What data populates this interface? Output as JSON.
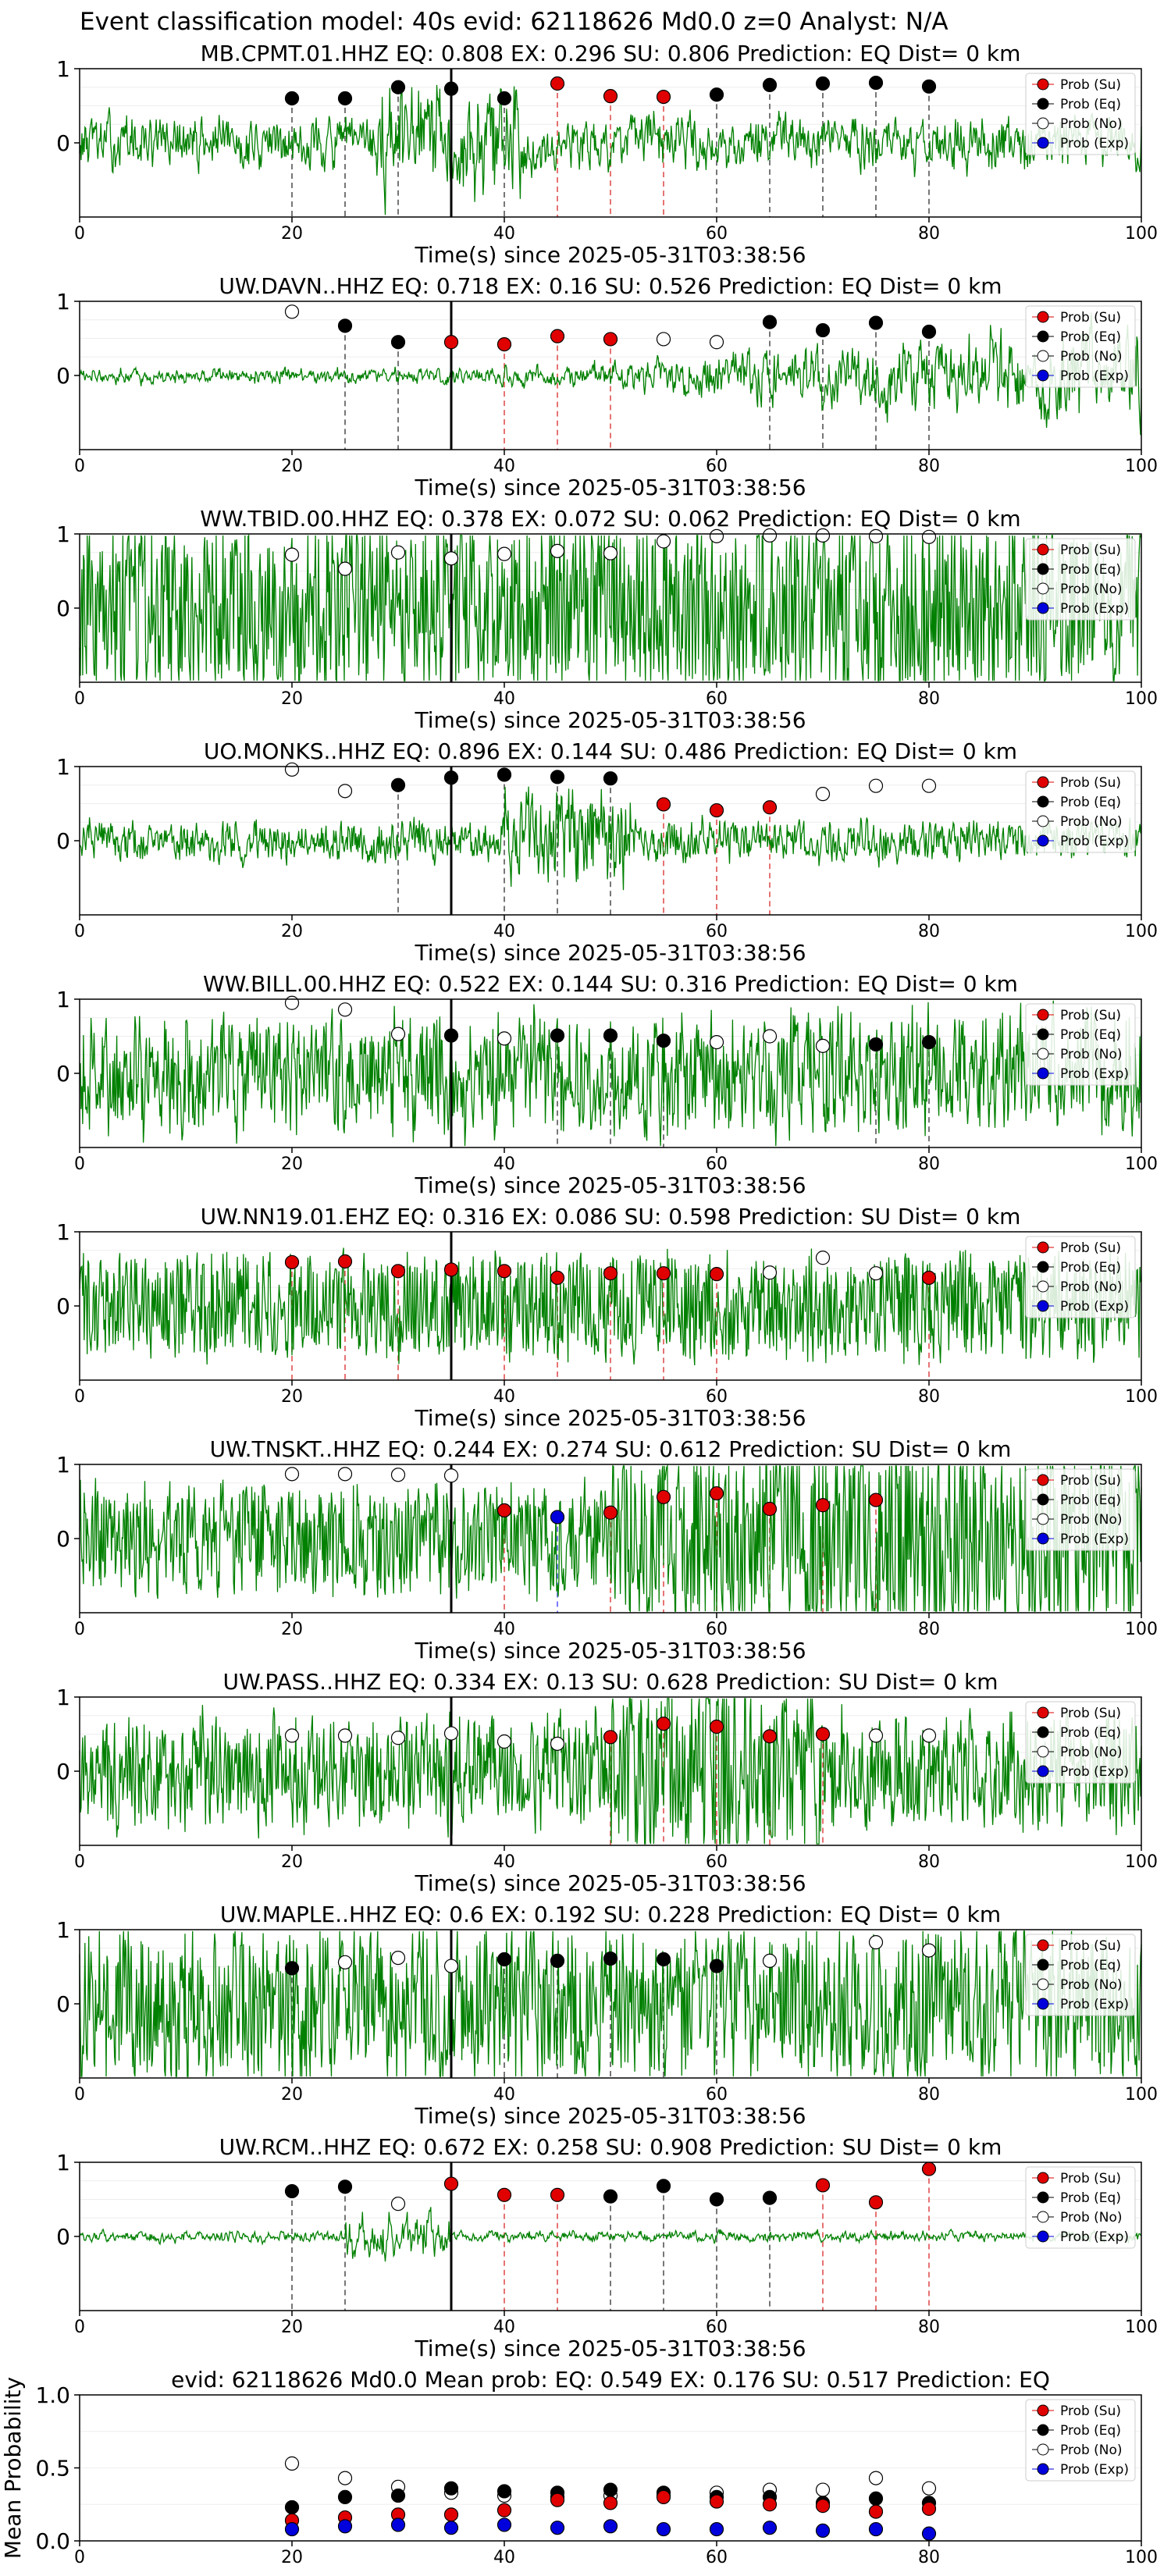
{
  "figure": {
    "suptitle": "Event classification model: 40s evid: 62118626 Md0.0 z=0 Analyst: N/A",
    "legend_labels": [
      "Prob (Su)",
      "Prob (Eq)",
      "Prob (No)",
      "Prob (Exp)"
    ],
    "colors": {
      "su": "#e00000",
      "eq": "#000000",
      "no": "#ffffff",
      "exp": "#0000dd",
      "trace": "#008000"
    }
  },
  "chart_data": [
    {
      "type": "line",
      "title": "MB.CPMT.01.HHZ   EQ: 0.808  EX: 0.296  SU: 0.806   Prediction: EQ    Dist= 0 km",
      "xlabel": "Time(s) since 2025-05-31T03:38:56",
      "xlim": [
        0,
        100
      ],
      "ylim": [
        -1,
        1
      ],
      "xticks": [
        "0",
        "20",
        "40",
        "60",
        "80",
        "100"
      ],
      "yticks": [
        "1",
        "0"
      ],
      "pick_x": 35,
      "points": [
        {
          "x": 20,
          "y": 0.6,
          "cls": "eq"
        },
        {
          "x": 25,
          "y": 0.6,
          "cls": "eq"
        },
        {
          "x": 30,
          "y": 0.75,
          "cls": "eq"
        },
        {
          "x": 35,
          "y": 0.73,
          "cls": "eq"
        },
        {
          "x": 40,
          "y": 0.6,
          "cls": "eq"
        },
        {
          "x": 45,
          "y": 0.8,
          "cls": "su"
        },
        {
          "x": 50,
          "y": 0.63,
          "cls": "su"
        },
        {
          "x": 55,
          "y": 0.62,
          "cls": "su"
        },
        {
          "x": 60,
          "y": 0.65,
          "cls": "eq"
        },
        {
          "x": 65,
          "y": 0.78,
          "cls": "eq"
        },
        {
          "x": 70,
          "y": 0.8,
          "cls": "eq"
        },
        {
          "x": 75,
          "y": 0.81,
          "cls": "eq"
        },
        {
          "x": 80,
          "y": 0.76,
          "cls": "eq"
        }
      ]
    },
    {
      "type": "line",
      "title": "UW.DAVN..HHZ   EQ: 0.718  EX: 0.16  SU: 0.526   Prediction: EQ    Dist= 0 km",
      "xlabel": "Time(s) since 2025-05-31T03:38:56",
      "xlim": [
        0,
        100
      ],
      "ylim": [
        -1,
        1
      ],
      "xticks": [
        "0",
        "20",
        "40",
        "60",
        "80",
        "100"
      ],
      "yticks": [
        "1",
        "0"
      ],
      "pick_x": 35,
      "points": [
        {
          "x": 20,
          "y": 0.86,
          "cls": "no"
        },
        {
          "x": 25,
          "y": 0.67,
          "cls": "eq"
        },
        {
          "x": 30,
          "y": 0.45,
          "cls": "eq"
        },
        {
          "x": 35,
          "y": 0.45,
          "cls": "su"
        },
        {
          "x": 40,
          "y": 0.42,
          "cls": "su"
        },
        {
          "x": 45,
          "y": 0.53,
          "cls": "su"
        },
        {
          "x": 50,
          "y": 0.49,
          "cls": "su"
        },
        {
          "x": 55,
          "y": 0.49,
          "cls": "no"
        },
        {
          "x": 60,
          "y": 0.45,
          "cls": "no"
        },
        {
          "x": 65,
          "y": 0.72,
          "cls": "eq"
        },
        {
          "x": 70,
          "y": 0.61,
          "cls": "eq"
        },
        {
          "x": 75,
          "y": 0.71,
          "cls": "eq"
        },
        {
          "x": 80,
          "y": 0.59,
          "cls": "eq"
        }
      ]
    },
    {
      "type": "line",
      "title": "WW.TBID.00.HHZ   EQ: 0.378  EX: 0.072  SU: 0.062   Prediction: EQ    Dist= 0 km",
      "xlabel": "Time(s) since 2025-05-31T03:38:56",
      "xlim": [
        0,
        100
      ],
      "ylim": [
        -1,
        1
      ],
      "xticks": [
        "0",
        "20",
        "40",
        "60",
        "80",
        "100"
      ],
      "yticks": [
        "1",
        "0"
      ],
      "pick_x": 35,
      "points": [
        {
          "x": 20,
          "y": 0.72,
          "cls": "no"
        },
        {
          "x": 25,
          "y": 0.53,
          "cls": "no"
        },
        {
          "x": 30,
          "y": 0.75,
          "cls": "no"
        },
        {
          "x": 35,
          "y": 0.67,
          "cls": "no"
        },
        {
          "x": 40,
          "y": 0.73,
          "cls": "no"
        },
        {
          "x": 45,
          "y": 0.77,
          "cls": "no"
        },
        {
          "x": 50,
          "y": 0.74,
          "cls": "no"
        },
        {
          "x": 55,
          "y": 0.9,
          "cls": "no"
        },
        {
          "x": 60,
          "y": 0.97,
          "cls": "no"
        },
        {
          "x": 65,
          "y": 0.98,
          "cls": "no"
        },
        {
          "x": 70,
          "y": 0.98,
          "cls": "no"
        },
        {
          "x": 75,
          "y": 0.97,
          "cls": "no"
        },
        {
          "x": 80,
          "y": 0.96,
          "cls": "no"
        }
      ]
    },
    {
      "type": "line",
      "title": "UO.MONKS..HHZ   EQ: 0.896  EX: 0.144  SU: 0.486   Prediction: EQ    Dist= 0 km",
      "xlabel": "Time(s) since 2025-05-31T03:38:56",
      "xlim": [
        0,
        100
      ],
      "ylim": [
        -1,
        1
      ],
      "xticks": [
        "0",
        "20",
        "40",
        "60",
        "80",
        "100"
      ],
      "yticks": [
        "1",
        "0"
      ],
      "pick_x": 35,
      "points": [
        {
          "x": 20,
          "y": 0.96,
          "cls": "no"
        },
        {
          "x": 25,
          "y": 0.67,
          "cls": "no"
        },
        {
          "x": 30,
          "y": 0.75,
          "cls": "eq"
        },
        {
          "x": 35,
          "y": 0.85,
          "cls": "eq"
        },
        {
          "x": 40,
          "y": 0.89,
          "cls": "eq"
        },
        {
          "x": 45,
          "y": 0.86,
          "cls": "eq"
        },
        {
          "x": 50,
          "y": 0.84,
          "cls": "eq"
        },
        {
          "x": 55,
          "y": 0.49,
          "cls": "su"
        },
        {
          "x": 60,
          "y": 0.41,
          "cls": "su"
        },
        {
          "x": 65,
          "y": 0.45,
          "cls": "su"
        },
        {
          "x": 70,
          "y": 0.63,
          "cls": "no"
        },
        {
          "x": 75,
          "y": 0.74,
          "cls": "no"
        },
        {
          "x": 80,
          "y": 0.74,
          "cls": "no"
        }
      ]
    },
    {
      "type": "line",
      "title": "WW.BILL.00.HHZ   EQ: 0.522  EX: 0.144  SU: 0.316   Prediction: EQ    Dist= 0 km",
      "xlabel": "Time(s) since 2025-05-31T03:38:56",
      "xlim": [
        0,
        100
      ],
      "ylim": [
        -1,
        1
      ],
      "xticks": [
        "0",
        "20",
        "40",
        "60",
        "80",
        "100"
      ],
      "yticks": [
        "1",
        "0"
      ],
      "pick_x": 35,
      "points": [
        {
          "x": 20,
          "y": 0.95,
          "cls": "no"
        },
        {
          "x": 25,
          "y": 0.86,
          "cls": "no"
        },
        {
          "x": 30,
          "y": 0.53,
          "cls": "no"
        },
        {
          "x": 35,
          "y": 0.51,
          "cls": "eq"
        },
        {
          "x": 40,
          "y": 0.47,
          "cls": "no"
        },
        {
          "x": 45,
          "y": 0.51,
          "cls": "eq"
        },
        {
          "x": 50,
          "y": 0.51,
          "cls": "eq"
        },
        {
          "x": 55,
          "y": 0.44,
          "cls": "eq"
        },
        {
          "x": 60,
          "y": 0.42,
          "cls": "no"
        },
        {
          "x": 65,
          "y": 0.5,
          "cls": "no"
        },
        {
          "x": 70,
          "y": 0.37,
          "cls": "no"
        },
        {
          "x": 75,
          "y": 0.39,
          "cls": "eq"
        },
        {
          "x": 80,
          "y": 0.42,
          "cls": "eq"
        }
      ]
    },
    {
      "type": "line",
      "title": "UW.NN19.01.EHZ   EQ: 0.316  EX: 0.086  SU: 0.598   Prediction: SU    Dist= 0 km",
      "xlabel": "Time(s) since 2025-05-31T03:38:56",
      "xlim": [
        0,
        100
      ],
      "ylim": [
        -1,
        1
      ],
      "xticks": [
        "0",
        "20",
        "40",
        "60",
        "80",
        "100"
      ],
      "yticks": [
        "1",
        "0"
      ],
      "pick_x": 35,
      "points": [
        {
          "x": 20,
          "y": 0.59,
          "cls": "su"
        },
        {
          "x": 25,
          "y": 0.6,
          "cls": "su"
        },
        {
          "x": 30,
          "y": 0.47,
          "cls": "su"
        },
        {
          "x": 35,
          "y": 0.49,
          "cls": "su"
        },
        {
          "x": 40,
          "y": 0.47,
          "cls": "su"
        },
        {
          "x": 45,
          "y": 0.38,
          "cls": "su"
        },
        {
          "x": 50,
          "y": 0.44,
          "cls": "su"
        },
        {
          "x": 55,
          "y": 0.44,
          "cls": "su"
        },
        {
          "x": 60,
          "y": 0.43,
          "cls": "su"
        },
        {
          "x": 65,
          "y": 0.45,
          "cls": "no"
        },
        {
          "x": 70,
          "y": 0.65,
          "cls": "no"
        },
        {
          "x": 75,
          "y": 0.44,
          "cls": "no"
        },
        {
          "x": 80,
          "y": 0.38,
          "cls": "su"
        }
      ]
    },
    {
      "type": "line",
      "title": "UW.TNSKT..HHZ   EQ: 0.244  EX: 0.274  SU: 0.612   Prediction: SU    Dist= 0 km",
      "xlabel": "Time(s) since 2025-05-31T03:38:56",
      "xlim": [
        0,
        100
      ],
      "ylim": [
        -1,
        1
      ],
      "xticks": [
        "0",
        "20",
        "40",
        "60",
        "80",
        "100"
      ],
      "yticks": [
        "1",
        "0"
      ],
      "pick_x": 35,
      "points": [
        {
          "x": 20,
          "y": 0.87,
          "cls": "no"
        },
        {
          "x": 25,
          "y": 0.87,
          "cls": "no"
        },
        {
          "x": 30,
          "y": 0.86,
          "cls": "no"
        },
        {
          "x": 35,
          "y": 0.85,
          "cls": "no"
        },
        {
          "x": 40,
          "y": 0.38,
          "cls": "su"
        },
        {
          "x": 45,
          "y": 0.29,
          "cls": "exp"
        },
        {
          "x": 50,
          "y": 0.35,
          "cls": "su"
        },
        {
          "x": 55,
          "y": 0.56,
          "cls": "su"
        },
        {
          "x": 60,
          "y": 0.61,
          "cls": "su"
        },
        {
          "x": 65,
          "y": 0.4,
          "cls": "su"
        },
        {
          "x": 70,
          "y": 0.45,
          "cls": "su"
        },
        {
          "x": 75,
          "y": 0.52,
          "cls": "su"
        }
      ]
    },
    {
      "type": "line",
      "title": "UW.PASS..HHZ   EQ: 0.334  EX: 0.13  SU: 0.628   Prediction: SU    Dist= 0 km",
      "xlabel": "Time(s) since 2025-05-31T03:38:56",
      "xlim": [
        0,
        100
      ],
      "ylim": [
        -1,
        1
      ],
      "xticks": [
        "0",
        "20",
        "40",
        "60",
        "80",
        "100"
      ],
      "yticks": [
        "1",
        "0"
      ],
      "pick_x": 35,
      "points": [
        {
          "x": 20,
          "y": 0.48,
          "cls": "no"
        },
        {
          "x": 25,
          "y": 0.48,
          "cls": "no"
        },
        {
          "x": 30,
          "y": 0.45,
          "cls": "no"
        },
        {
          "x": 35,
          "y": 0.51,
          "cls": "no"
        },
        {
          "x": 40,
          "y": 0.4,
          "cls": "no"
        },
        {
          "x": 45,
          "y": 0.37,
          "cls": "no"
        },
        {
          "x": 50,
          "y": 0.46,
          "cls": "su"
        },
        {
          "x": 55,
          "y": 0.64,
          "cls": "su"
        },
        {
          "x": 60,
          "y": 0.6,
          "cls": "su"
        },
        {
          "x": 65,
          "y": 0.47,
          "cls": "su"
        },
        {
          "x": 70,
          "y": 0.5,
          "cls": "su"
        },
        {
          "x": 75,
          "y": 0.48,
          "cls": "no"
        },
        {
          "x": 80,
          "y": 0.48,
          "cls": "no"
        }
      ]
    },
    {
      "type": "line",
      "title": "UW.MAPLE..HHZ   EQ: 0.6  EX: 0.192  SU: 0.228   Prediction: EQ    Dist= 0 km",
      "xlabel": "Time(s) since 2025-05-31T03:38:56",
      "xlim": [
        0,
        100
      ],
      "ylim": [
        -1,
        1
      ],
      "xticks": [
        "0",
        "20",
        "40",
        "60",
        "80",
        "100"
      ],
      "yticks": [
        "1",
        "0"
      ],
      "pick_x": 35,
      "points": [
        {
          "x": 20,
          "y": 0.48,
          "cls": "eq"
        },
        {
          "x": 25,
          "y": 0.56,
          "cls": "no"
        },
        {
          "x": 30,
          "y": 0.62,
          "cls": "no"
        },
        {
          "x": 35,
          "y": 0.51,
          "cls": "no"
        },
        {
          "x": 40,
          "y": 0.6,
          "cls": "eq"
        },
        {
          "x": 45,
          "y": 0.58,
          "cls": "eq"
        },
        {
          "x": 50,
          "y": 0.61,
          "cls": "eq"
        },
        {
          "x": 55,
          "y": 0.6,
          "cls": "eq"
        },
        {
          "x": 60,
          "y": 0.51,
          "cls": "eq"
        },
        {
          "x": 65,
          "y": 0.58,
          "cls": "no"
        },
        {
          "x": 75,
          "y": 0.83,
          "cls": "no"
        },
        {
          "x": 80,
          "y": 0.72,
          "cls": "no"
        }
      ]
    },
    {
      "type": "line",
      "title": "UW.RCM..HHZ   EQ: 0.672  EX: 0.258  SU: 0.908   Prediction: SU    Dist= 0 km",
      "xlabel": "Time(s) since 2025-05-31T03:38:56",
      "xlim": [
        0,
        100
      ],
      "ylim": [
        -1,
        1
      ],
      "xticks": [
        "0",
        "20",
        "40",
        "60",
        "80",
        "100"
      ],
      "yticks": [
        "1",
        "0"
      ],
      "pick_x": 35,
      "points": [
        {
          "x": 20,
          "y": 0.61,
          "cls": "eq"
        },
        {
          "x": 25,
          "y": 0.67,
          "cls": "eq"
        },
        {
          "x": 30,
          "y": 0.44,
          "cls": "no"
        },
        {
          "x": 35,
          "y": 0.71,
          "cls": "su"
        },
        {
          "x": 40,
          "y": 0.56,
          "cls": "su"
        },
        {
          "x": 45,
          "y": 0.56,
          "cls": "su"
        },
        {
          "x": 50,
          "y": 0.54,
          "cls": "eq"
        },
        {
          "x": 55,
          "y": 0.68,
          "cls": "eq"
        },
        {
          "x": 60,
          "y": 0.5,
          "cls": "eq"
        },
        {
          "x": 65,
          "y": 0.52,
          "cls": "eq"
        },
        {
          "x": 70,
          "y": 0.69,
          "cls": "su"
        },
        {
          "x": 75,
          "y": 0.46,
          "cls": "su"
        },
        {
          "x": 80,
          "y": 0.91,
          "cls": "su"
        }
      ]
    },
    {
      "type": "scatter",
      "title": "evid: 62118626  Md0.0   Mean prob:   EQ: 0.549  EX: 0.176  SU: 0.517   Prediction: EQ",
      "xlabel": "",
      "ylabel": "Mean Probability",
      "xlim": [
        0,
        100
      ],
      "ylim": [
        0,
        1
      ],
      "xticks": [
        "0",
        "20",
        "40",
        "60",
        "80",
        "100"
      ],
      "yticks": [
        "1.0",
        "0.5",
        "0.0"
      ],
      "x": [
        20,
        25,
        30,
        35,
        40,
        45,
        50,
        55,
        60,
        65,
        70,
        75,
        80
      ],
      "series": [
        {
          "key": "no",
          "values": [
            0.53,
            0.43,
            0.37,
            0.33,
            0.31,
            0.3,
            0.31,
            0.31,
            0.33,
            0.35,
            0.35,
            0.43,
            0.36
          ]
        },
        {
          "key": "eq",
          "values": [
            0.23,
            0.3,
            0.31,
            0.36,
            0.34,
            0.33,
            0.35,
            0.33,
            0.3,
            0.3,
            0.26,
            0.29,
            0.26
          ]
        },
        {
          "key": "su",
          "values": [
            0.14,
            0.16,
            0.18,
            0.18,
            0.21,
            0.28,
            0.26,
            0.3,
            0.27,
            0.25,
            0.24,
            0.2,
            0.22
          ]
        },
        {
          "key": "exp",
          "values": [
            0.08,
            0.1,
            0.11,
            0.09,
            0.11,
            0.09,
            0.1,
            0.08,
            0.08,
            0.09,
            0.07,
            0.08,
            0.05
          ]
        }
      ]
    }
  ]
}
